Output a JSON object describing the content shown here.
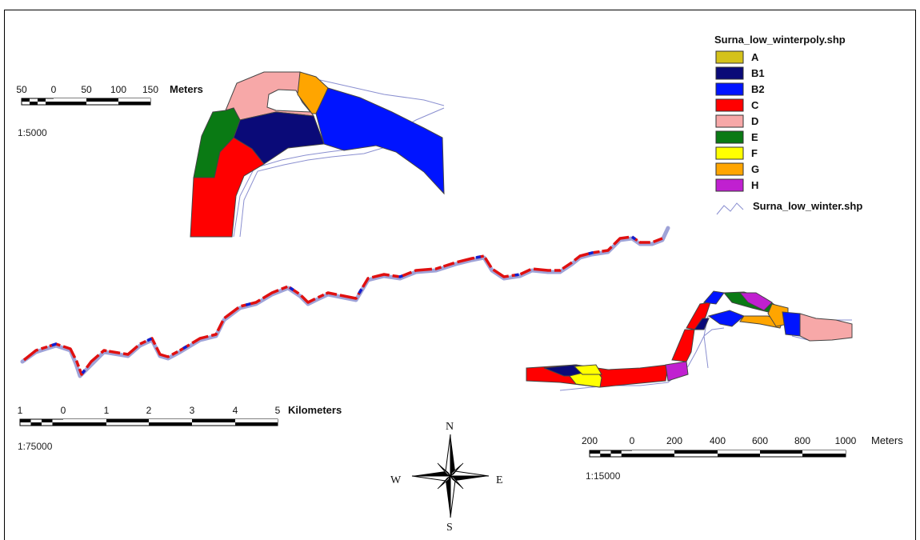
{
  "legend": {
    "title": "Surna_low_winterpoly.shp",
    "classes": [
      {
        "label": "A",
        "color": "#d4c21a"
      },
      {
        "label": "B1",
        "color": "#0a0a78"
      },
      {
        "label": "B2",
        "color": "#0014ff"
      },
      {
        "label": "C",
        "color": "#ff0000"
      },
      {
        "label": "D",
        "color": "#f7a8a8"
      },
      {
        "label": "E",
        "color": "#0a7a14"
      },
      {
        "label": "F",
        "color": "#ffff00"
      },
      {
        "label": "G",
        "color": "#ffa500"
      },
      {
        "label": "H",
        "color": "#c020d0"
      }
    ],
    "line_label": "Surna_low_winter.shp"
  },
  "scalebar_detail": {
    "ticks": [
      "50",
      "0",
      "50",
      "100",
      "150"
    ],
    "unit": "Meters",
    "ratio": "1:5000"
  },
  "scalebar_overview": {
    "ticks": [
      "1",
      "0",
      "1",
      "2",
      "3",
      "4",
      "5"
    ],
    "unit": "Kilometers",
    "ratio": "1:75000"
  },
  "scalebar_mid": {
    "ticks": [
      "200",
      "0",
      "200",
      "400",
      "600",
      "800",
      "1000"
    ],
    "unit": "Meters",
    "ratio": "1:15000"
  },
  "compass": {
    "n": "N",
    "s": "S",
    "e": "E",
    "w": "W"
  }
}
